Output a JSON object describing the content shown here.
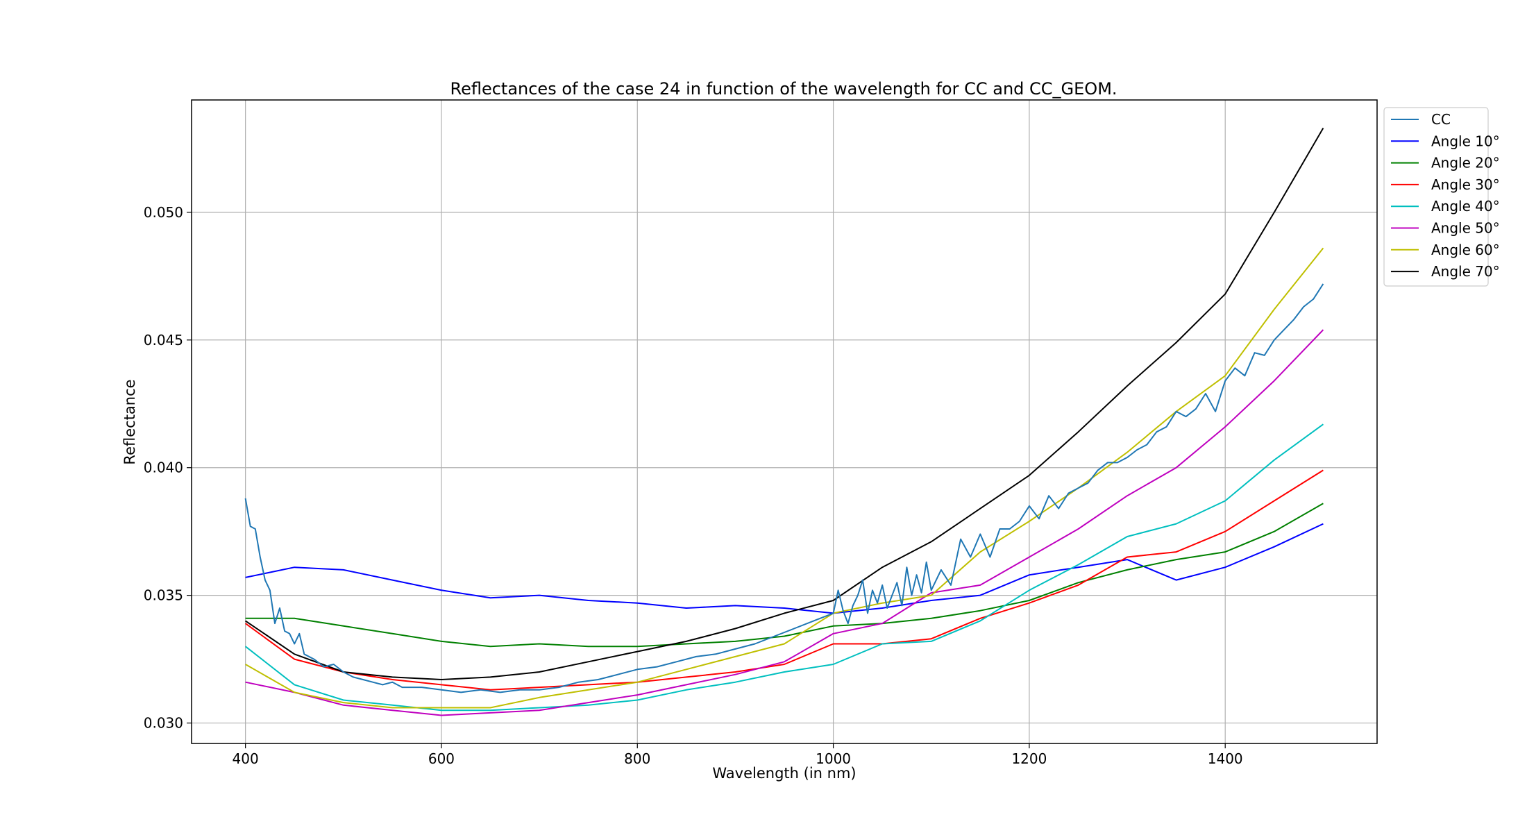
{
  "chart_data": {
    "type": "line",
    "title": "Reflectances of the case 24 in function of the wavelength for CC and CC_GEOM.",
    "xlabel": "Wavelength (in nm)",
    "ylabel": "Reflectance",
    "xlim": [
      345,
      1555
    ],
    "ylim": [
      0.0292,
      0.0544
    ],
    "xticks": [
      400,
      600,
      800,
      1000,
      1200,
      1400
    ],
    "yticks": [
      0.03,
      0.035,
      0.04,
      0.045,
      0.05
    ],
    "xtick_labels": [
      "400",
      "600",
      "800",
      "1000",
      "1200",
      "1400"
    ],
    "ytick_labels": [
      "0.030",
      "0.035",
      "0.040",
      "0.045",
      "0.050"
    ],
    "grid": true,
    "legend_position": "outside-top-right",
    "series": [
      {
        "name": "CC",
        "color": "#1f77b4",
        "x": [
          400,
          405,
          410,
          415,
          420,
          425,
          430,
          435,
          440,
          445,
          450,
          455,
          460,
          470,
          480,
          490,
          500,
          510,
          520,
          530,
          540,
          550,
          560,
          580,
          600,
          620,
          640,
          660,
          680,
          700,
          720,
          740,
          760,
          780,
          800,
          820,
          840,
          860,
          880,
          900,
          920,
          940,
          960,
          980,
          1000,
          1005,
          1010,
          1015,
          1020,
          1025,
          1030,
          1035,
          1040,
          1045,
          1050,
          1055,
          1060,
          1065,
          1070,
          1075,
          1080,
          1085,
          1090,
          1095,
          1100,
          1110,
          1120,
          1130,
          1140,
          1150,
          1160,
          1170,
          1180,
          1190,
          1200,
          1210,
          1220,
          1230,
          1240,
          1250,
          1260,
          1270,
          1280,
          1290,
          1300,
          1310,
          1320,
          1330,
          1340,
          1350,
          1360,
          1370,
          1380,
          1390,
          1400,
          1410,
          1420,
          1430,
          1440,
          1450,
          1460,
          1470,
          1480,
          1490,
          1500
        ],
        "values": [
          0.0388,
          0.0377,
          0.0376,
          0.0365,
          0.0356,
          0.0352,
          0.0339,
          0.0345,
          0.0336,
          0.0335,
          0.0331,
          0.0335,
          0.0327,
          0.0325,
          0.0322,
          0.0323,
          0.032,
          0.0318,
          0.0317,
          0.0316,
          0.0315,
          0.0316,
          0.0314,
          0.0314,
          0.0313,
          0.0312,
          0.0313,
          0.0312,
          0.0313,
          0.0313,
          0.0314,
          0.0316,
          0.0317,
          0.0319,
          0.0321,
          0.0322,
          0.0324,
          0.0326,
          0.0327,
          0.0329,
          0.0331,
          0.0334,
          0.0337,
          0.034,
          0.0343,
          0.0352,
          0.0344,
          0.0339,
          0.0346,
          0.035,
          0.0356,
          0.0343,
          0.0352,
          0.0347,
          0.0354,
          0.0345,
          0.035,
          0.0355,
          0.0346,
          0.0361,
          0.035,
          0.0358,
          0.0351,
          0.0363,
          0.0352,
          0.036,
          0.0354,
          0.0372,
          0.0365,
          0.0374,
          0.0365,
          0.0376,
          0.0376,
          0.0379,
          0.0385,
          0.038,
          0.0389,
          0.0384,
          0.039,
          0.0392,
          0.0394,
          0.0399,
          0.0402,
          0.0402,
          0.0404,
          0.0407,
          0.0409,
          0.0414,
          0.0416,
          0.0422,
          0.042,
          0.0423,
          0.0429,
          0.0422,
          0.0434,
          0.0439,
          0.0436,
          0.0445,
          0.0444,
          0.045,
          0.0454,
          0.0458,
          0.0463,
          0.0466,
          0.0472
        ]
      },
      {
        "name": "Angle 10°",
        "color": "#0000ff",
        "x": [
          400,
          450,
          500,
          550,
          600,
          650,
          700,
          750,
          800,
          850,
          900,
          950,
          1000,
          1050,
          1100,
          1150,
          1200,
          1250,
          1300,
          1350,
          1400,
          1450,
          1500
        ],
        "values": [
          0.0357,
          0.0361,
          0.036,
          0.0356,
          0.0352,
          0.0349,
          0.035,
          0.0348,
          0.0347,
          0.0345,
          0.0346,
          0.0345,
          0.0343,
          0.0345,
          0.0348,
          0.035,
          0.0358,
          0.0361,
          0.0364,
          0.0356,
          0.0361,
          0.0369,
          0.0378
        ]
      },
      {
        "name": "Angle 20°",
        "color": "#008000",
        "x": [
          400,
          450,
          500,
          550,
          600,
          650,
          700,
          750,
          800,
          850,
          900,
          950,
          1000,
          1050,
          1100,
          1150,
          1200,
          1250,
          1300,
          1350,
          1400,
          1450,
          1500
        ],
        "values": [
          0.0341,
          0.0341,
          0.0338,
          0.0335,
          0.0332,
          0.033,
          0.0331,
          0.033,
          0.033,
          0.0331,
          0.0332,
          0.0334,
          0.0338,
          0.0339,
          0.0341,
          0.0344,
          0.0348,
          0.0355,
          0.036,
          0.0364,
          0.0367,
          0.0375,
          0.0386
        ]
      },
      {
        "name": "Angle 30°",
        "color": "#ff0000",
        "x": [
          400,
          450,
          500,
          550,
          600,
          650,
          700,
          750,
          800,
          850,
          900,
          950,
          1000,
          1050,
          1100,
          1150,
          1200,
          1250,
          1300,
          1350,
          1400,
          1450,
          1500
        ],
        "values": [
          0.0339,
          0.0325,
          0.032,
          0.0317,
          0.0315,
          0.0313,
          0.0314,
          0.0315,
          0.0316,
          0.0318,
          0.032,
          0.0323,
          0.0331,
          0.0331,
          0.0333,
          0.0341,
          0.0347,
          0.0354,
          0.0365,
          0.0367,
          0.0375,
          0.0387,
          0.0399
        ]
      },
      {
        "name": "Angle 40°",
        "color": "#00bfbf",
        "x": [
          400,
          450,
          500,
          550,
          600,
          650,
          700,
          750,
          800,
          850,
          900,
          950,
          1000,
          1050,
          1100,
          1150,
          1200,
          1250,
          1300,
          1350,
          1400,
          1450,
          1500
        ],
        "values": [
          0.033,
          0.0315,
          0.0309,
          0.0307,
          0.0305,
          0.0305,
          0.0306,
          0.0307,
          0.0309,
          0.0313,
          0.0316,
          0.032,
          0.0323,
          0.0331,
          0.0332,
          0.034,
          0.0352,
          0.0362,
          0.0373,
          0.0378,
          0.0387,
          0.0403,
          0.0417
        ]
      },
      {
        "name": "Angle 50°",
        "color": "#bf00bf",
        "x": [
          400,
          450,
          500,
          550,
          600,
          650,
          700,
          750,
          800,
          850,
          900,
          950,
          1000,
          1050,
          1100,
          1150,
          1200,
          1250,
          1300,
          1350,
          1400,
          1450,
          1500
        ],
        "values": [
          0.0316,
          0.0312,
          0.0307,
          0.0305,
          0.0303,
          0.0304,
          0.0305,
          0.0308,
          0.0311,
          0.0315,
          0.0319,
          0.0324,
          0.0335,
          0.0339,
          0.0351,
          0.0354,
          0.0365,
          0.0376,
          0.0389,
          0.04,
          0.0416,
          0.0434,
          0.0454
        ]
      },
      {
        "name": "Angle 60°",
        "color": "#bfbf00",
        "x": [
          400,
          450,
          500,
          550,
          600,
          650,
          700,
          750,
          800,
          850,
          900,
          950,
          1000,
          1050,
          1100,
          1150,
          1200,
          1250,
          1300,
          1350,
          1400,
          1450,
          1500
        ],
        "values": [
          0.0323,
          0.0312,
          0.0308,
          0.0306,
          0.0306,
          0.0306,
          0.031,
          0.0313,
          0.0316,
          0.0321,
          0.0326,
          0.0331,
          0.0343,
          0.0347,
          0.035,
          0.0367,
          0.0379,
          0.0392,
          0.0406,
          0.0422,
          0.0436,
          0.0462,
          0.0486
        ]
      },
      {
        "name": "Angle 70°",
        "color": "#000000",
        "x": [
          400,
          450,
          500,
          550,
          600,
          650,
          700,
          750,
          800,
          850,
          900,
          950,
          1000,
          1050,
          1100,
          1150,
          1200,
          1250,
          1300,
          1350,
          1400,
          1450,
          1500
        ],
        "values": [
          0.034,
          0.0327,
          0.032,
          0.0318,
          0.0317,
          0.0318,
          0.032,
          0.0324,
          0.0328,
          0.0332,
          0.0337,
          0.0343,
          0.0348,
          0.0361,
          0.0371,
          0.0384,
          0.0397,
          0.0414,
          0.0432,
          0.0449,
          0.0468,
          0.05,
          0.0533
        ]
      }
    ]
  }
}
